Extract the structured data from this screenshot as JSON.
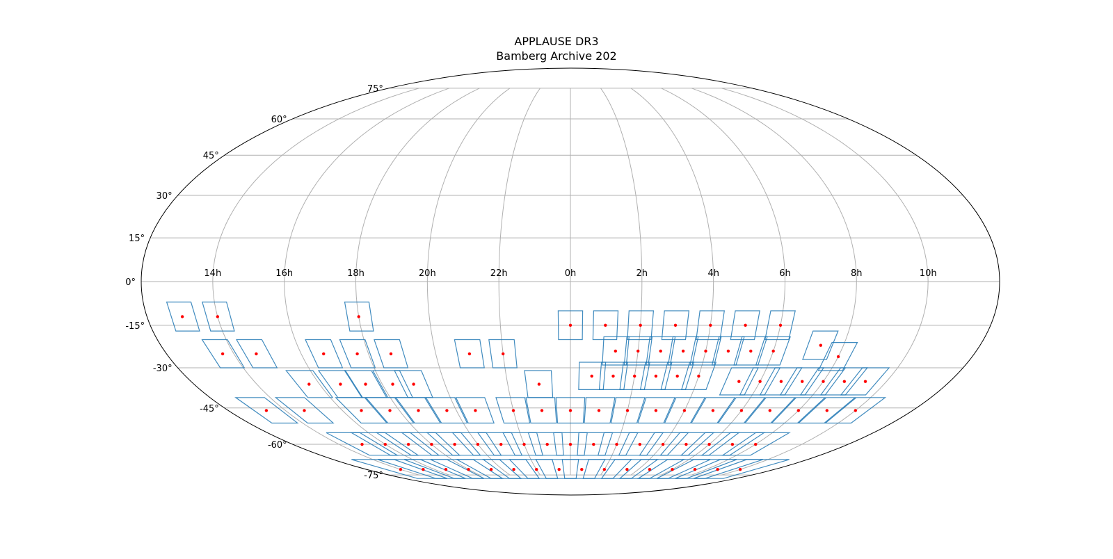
{
  "chart_data": {
    "type": "scatter",
    "projection": "mollweide",
    "title": "APPLAUSE DR3",
    "subtitle": "Bamberg Archive 202",
    "grid": true,
    "xlabel": "",
    "ylabel": "",
    "ra_tick_labels": [
      "14h",
      "16h",
      "18h",
      "20h",
      "22h",
      "0h",
      "2h",
      "4h",
      "6h",
      "8h",
      "10h"
    ],
    "dec_tick_labels": [
      "75°",
      "60°",
      "45°",
      "30°",
      "15°",
      "0°",
      "-15°",
      "-30°",
      "-45°",
      "-60°",
      "-75°"
    ],
    "colors": {
      "plate_outline": "#1f77b4",
      "plate_center": "#ff0000",
      "grid": "#b0b0b0"
    },
    "plates": [
      {
        "ra": 195,
        "dec": -12
      },
      {
        "ra": 210,
        "dec": -12
      },
      {
        "ra": 270,
        "dec": -12
      },
      {
        "ra": 0,
        "dec": -15
      },
      {
        "ra": 15,
        "dec": -15
      },
      {
        "ra": 30,
        "dec": -15
      },
      {
        "ra": 45,
        "dec": -15
      },
      {
        "ra": 60,
        "dec": -15
      },
      {
        "ra": 75,
        "dec": -15
      },
      {
        "ra": 90,
        "dec": -15
      },
      {
        "ra": 205,
        "dec": -25
      },
      {
        "ra": 220,
        "dec": -25
      },
      {
        "ra": 250,
        "dec": -25
      },
      {
        "ra": 265,
        "dec": -25
      },
      {
        "ra": 280,
        "dec": -25
      },
      {
        "ra": 315,
        "dec": -25
      },
      {
        "ra": 330,
        "dec": -25
      },
      {
        "ra": 20,
        "dec": -24
      },
      {
        "ra": 30,
        "dec": -24
      },
      {
        "ra": 40,
        "dec": -24
      },
      {
        "ra": 50,
        "dec": -24
      },
      {
        "ra": 60,
        "dec": -24
      },
      {
        "ra": 70,
        "dec": -24
      },
      {
        "ra": 80,
        "dec": -24
      },
      {
        "ra": 90,
        "dec": -24
      },
      {
        "ra": 110,
        "dec": -22
      },
      {
        "ra": 120,
        "dec": -26
      },
      {
        "ra": 235,
        "dec": -36
      },
      {
        "ra": 250,
        "dec": -36
      },
      {
        "ra": 262,
        "dec": -36
      },
      {
        "ra": 275,
        "dec": -36
      },
      {
        "ra": 285,
        "dec": -36
      },
      {
        "ra": 345,
        "dec": -36
      },
      {
        "ra": 10,
        "dec": -33
      },
      {
        "ra": 20,
        "dec": -33
      },
      {
        "ra": 30,
        "dec": -33
      },
      {
        "ra": 40,
        "dec": -33
      },
      {
        "ra": 50,
        "dec": -33
      },
      {
        "ra": 60,
        "dec": -33
      },
      {
        "ra": 80,
        "dec": -35
      },
      {
        "ra": 90,
        "dec": -35
      },
      {
        "ra": 100,
        "dec": -35
      },
      {
        "ra": 110,
        "dec": -35
      },
      {
        "ra": 120,
        "dec": -35
      },
      {
        "ra": 130,
        "dec": -35
      },
      {
        "ra": 140,
        "dec": -35
      },
      {
        "ra": 200,
        "dec": -46
      },
      {
        "ra": 220,
        "dec": -46
      },
      {
        "ra": 250,
        "dec": -46
      },
      {
        "ra": 265,
        "dec": -46
      },
      {
        "ra": 280,
        "dec": -46
      },
      {
        "ra": 295,
        "dec": -46
      },
      {
        "ra": 310,
        "dec": -46
      },
      {
        "ra": 330,
        "dec": -46
      },
      {
        "ra": 345,
        "dec": -46
      },
      {
        "ra": 0,
        "dec": -46
      },
      {
        "ra": 15,
        "dec": -46
      },
      {
        "ra": 30,
        "dec": -46
      },
      {
        "ra": 45,
        "dec": -46
      },
      {
        "ra": 60,
        "dec": -46
      },
      {
        "ra": 75,
        "dec": -46
      },
      {
        "ra": 90,
        "dec": -46
      },
      {
        "ra": 105,
        "dec": -46
      },
      {
        "ra": 120,
        "dec": -46
      },
      {
        "ra": 135,
        "dec": -46
      },
      {
        "ra": 150,
        "dec": -46
      },
      {
        "ra": 225,
        "dec": -60
      },
      {
        "ra": 240,
        "dec": -60
      },
      {
        "ra": 255,
        "dec": -60
      },
      {
        "ra": 270,
        "dec": -60
      },
      {
        "ra": 285,
        "dec": -60
      },
      {
        "ra": 300,
        "dec": -60
      },
      {
        "ra": 315,
        "dec": -60
      },
      {
        "ra": 330,
        "dec": -60
      },
      {
        "ra": 345,
        "dec": -60
      },
      {
        "ra": 0,
        "dec": -60
      },
      {
        "ra": 15,
        "dec": -60
      },
      {
        "ra": 30,
        "dec": -60
      },
      {
        "ra": 45,
        "dec": -60
      },
      {
        "ra": 60,
        "dec": -60
      },
      {
        "ra": 75,
        "dec": -60
      },
      {
        "ra": 90,
        "dec": -60
      },
      {
        "ra": 105,
        "dec": -60
      },
      {
        "ra": 120,
        "dec": -60
      },
      {
        "ra": 210,
        "dec": -72
      },
      {
        "ra": 230,
        "dec": -72
      },
      {
        "ra": 250,
        "dec": -72
      },
      {
        "ra": 270,
        "dec": -72
      },
      {
        "ra": 290,
        "dec": -72
      },
      {
        "ra": 310,
        "dec": -72
      },
      {
        "ra": 330,
        "dec": -72
      },
      {
        "ra": 350,
        "dec": -72
      },
      {
        "ra": 10,
        "dec": -72
      },
      {
        "ra": 30,
        "dec": -72
      },
      {
        "ra": 50,
        "dec": -72
      },
      {
        "ra": 70,
        "dec": -72
      },
      {
        "ra": 90,
        "dec": -72
      },
      {
        "ra": 110,
        "dec": -72
      },
      {
        "ra": 130,
        "dec": -72
      },
      {
        "ra": 150,
        "dec": -72
      }
    ]
  }
}
